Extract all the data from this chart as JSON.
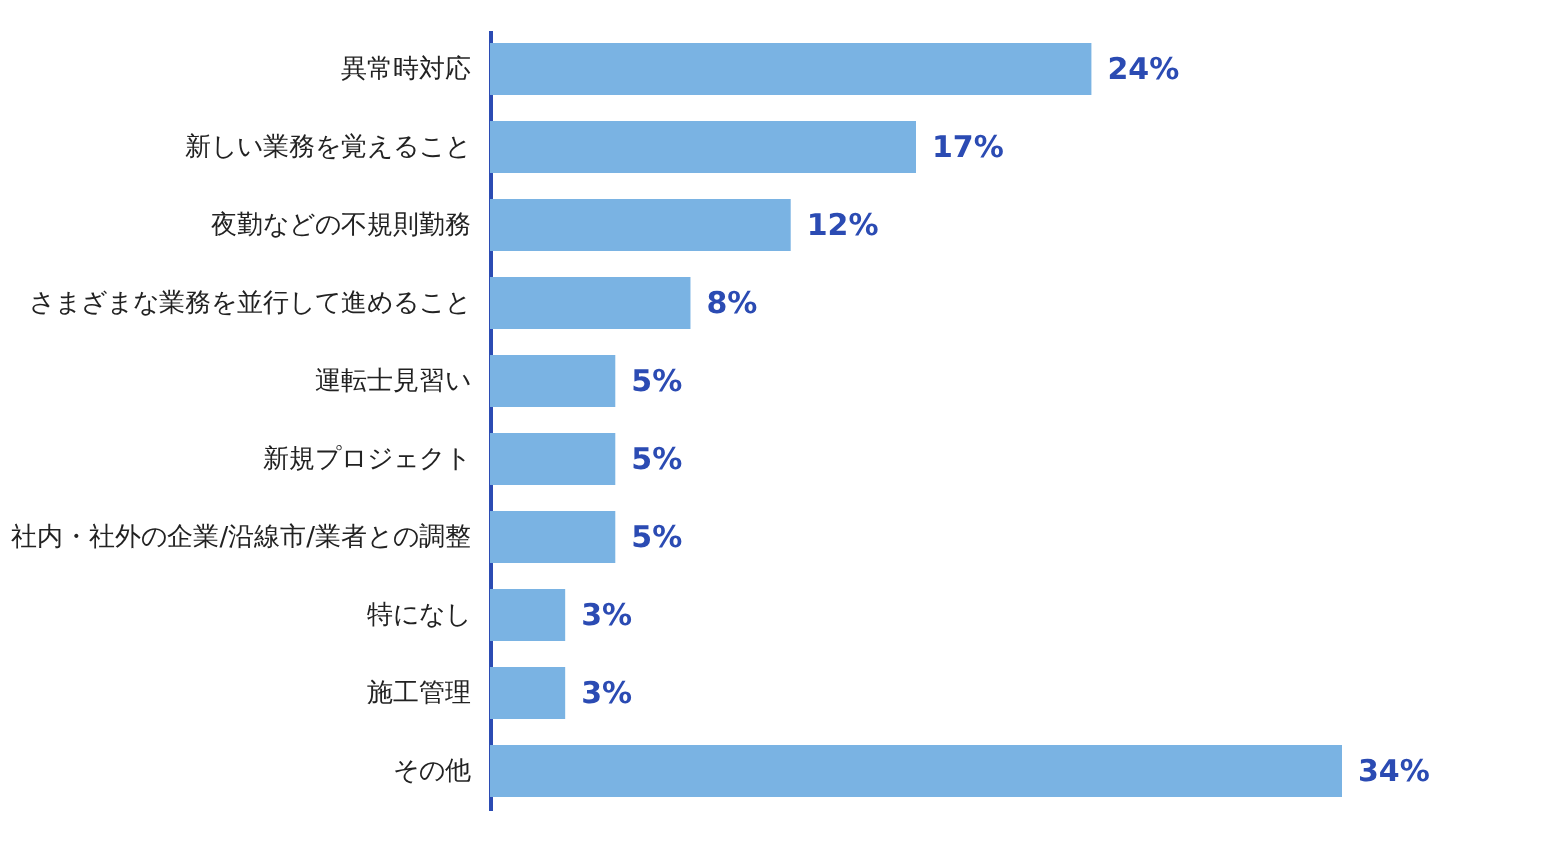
{
  "chart_data": {
    "type": "bar",
    "orientation": "horizontal",
    "categories": [
      "異常時対応",
      "新しい業務を覚えること",
      "夜勤などの不規則勤務",
      "さまざまな業務を並行して進めること",
      "運転士見習い",
      "新規プロジェクト",
      "社内・社外の企業/沿線市/業者との調整",
      "特になし",
      "施工管理",
      "その他"
    ],
    "values": [
      24,
      17,
      12,
      8,
      5,
      5,
      5,
      3,
      3,
      34
    ],
    "value_labels": [
      "24%",
      "17%",
      "12%",
      "8%",
      "5%",
      "5%",
      "5%",
      "3%",
      "3%",
      "34%"
    ],
    "color": "#7ab3e3",
    "grid": false
  }
}
